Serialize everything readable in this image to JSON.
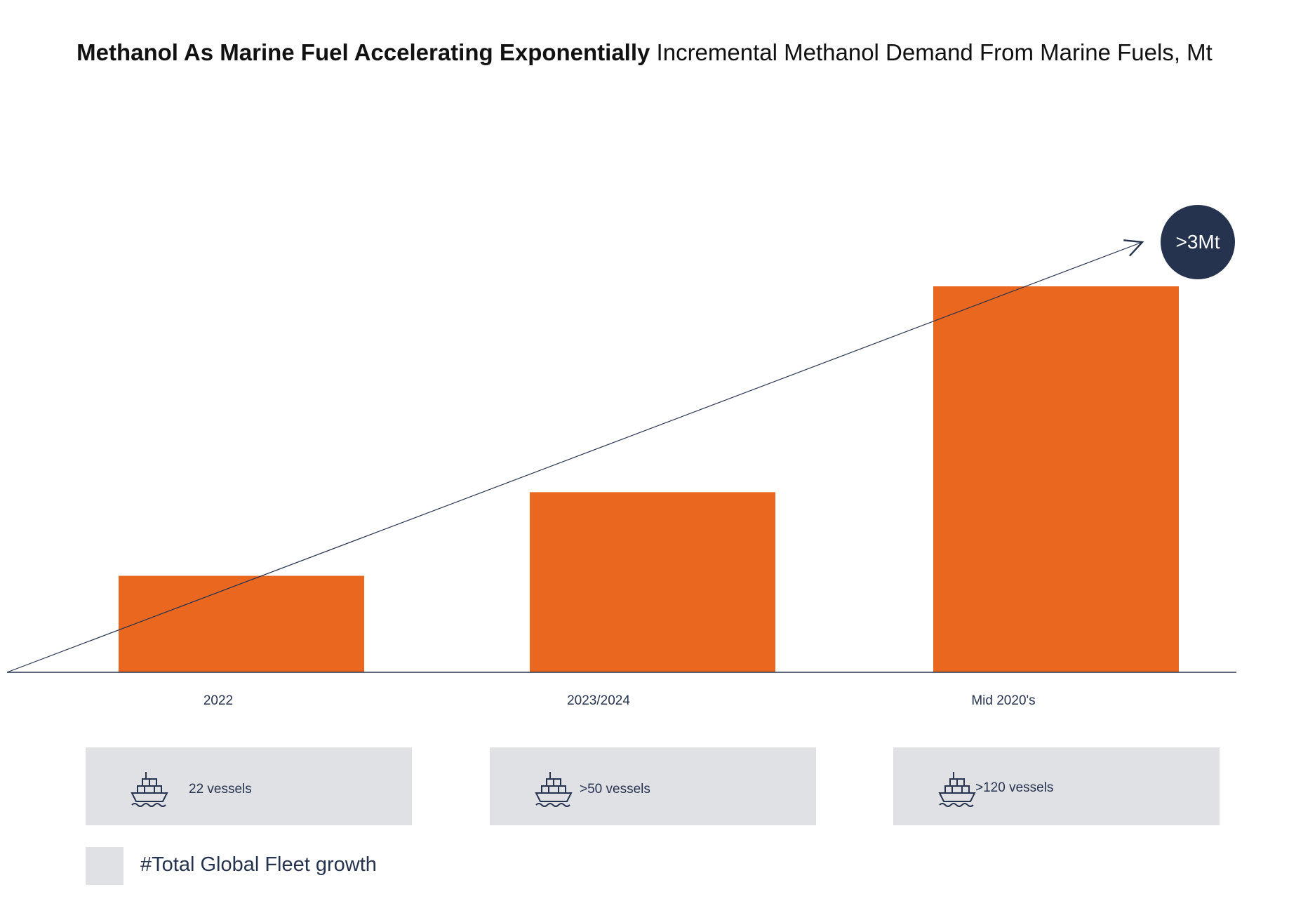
{
  "title": {
    "bold": "Methanol As Marine Fuel Accelerating Exponentially",
    "rest": "Incremental Methanol Demand From Marine Fuels, Mt"
  },
  "colors": {
    "bar": "#ea6720",
    "navy": "#26334f",
    "box": "#e0e1e5"
  },
  "chart_data": {
    "type": "bar",
    "categories": [
      "2022",
      "2023/2024",
      "Mid 2020's"
    ],
    "values": [
      0.75,
      1.4,
      3.0
    ],
    "unit": "Mt",
    "ylim": [
      0,
      3.0
    ],
    "grid": false,
    "annotation": ">3Mt",
    "trend_arrow": true
  },
  "vessels": [
    {
      "icon": "ship-icon",
      "label": "22 vessels"
    },
    {
      "icon": "ship-icon",
      "label": ">50 vessels"
    },
    {
      "icon": "ship-icon",
      "label": ">120 vessels"
    }
  ],
  "legend": {
    "label": "#Total Global Fleet growth"
  }
}
